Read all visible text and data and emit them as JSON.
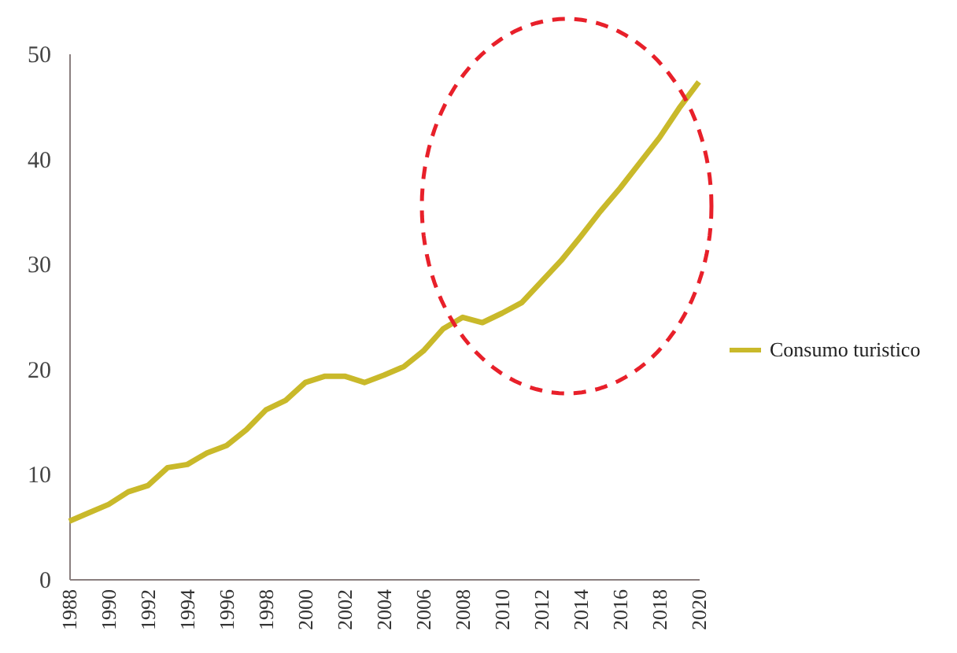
{
  "chart_data": {
    "type": "line",
    "x": [
      1988,
      1989,
      1990,
      1991,
      1992,
      1993,
      1994,
      1995,
      1996,
      1997,
      1998,
      1999,
      2000,
      2001,
      2002,
      2003,
      2004,
      2005,
      2006,
      2007,
      2008,
      2009,
      2010,
      2011,
      2012,
      2013,
      2014,
      2015,
      2016,
      2017,
      2018,
      2019,
      2020
    ],
    "series": [
      {
        "name": "Consumo turistico",
        "color": "#c9b92a",
        "values": [
          5.5,
          6.3,
          7.1,
          8.3,
          8.9,
          10.6,
          10.9,
          12.0,
          12.7,
          14.2,
          16.1,
          17.0,
          18.7,
          19.3,
          19.3,
          18.7,
          19.4,
          20.2,
          21.7,
          23.8,
          24.9,
          24.4,
          25.3,
          26.3,
          28.3,
          30.3,
          32.6,
          35.0,
          37.2,
          39.6,
          42.0,
          44.8,
          47.3
        ]
      }
    ],
    "xlim": [
      1988,
      2020
    ],
    "xticks": [
      1988,
      1990,
      1992,
      1994,
      1996,
      1998,
      2000,
      2002,
      2004,
      2006,
      2008,
      2010,
      2012,
      2014,
      2016,
      2018,
      2020
    ],
    "ylim": [
      0,
      50
    ],
    "yticks": [
      0,
      10,
      20,
      30,
      40,
      50
    ],
    "grid": false,
    "legend": "right",
    "marker": "none",
    "line_style": "solid"
  }
}
